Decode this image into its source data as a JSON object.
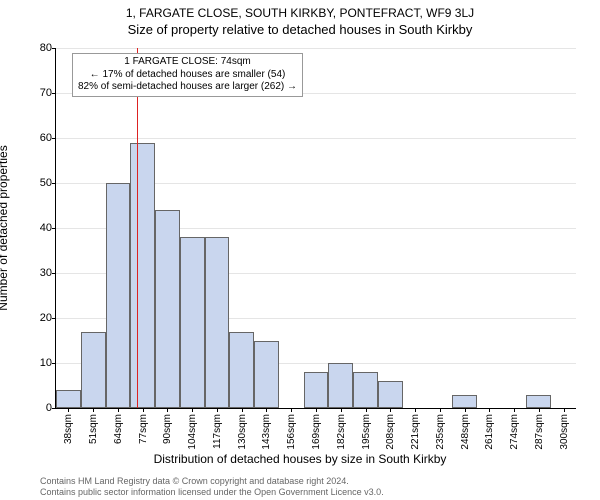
{
  "chart": {
    "type": "histogram",
    "title_line1": "1, FARGATE CLOSE, SOUTH KIRKBY, PONTEFRACT, WF9 3LJ",
    "title_line2": "Size of property relative to detached houses in South Kirkby",
    "ylabel": "Number of detached properties",
    "xlabel": "Distribution of detached houses by size in South Kirkby",
    "background_color": "#ffffff",
    "grid_color": "#e5e5e5",
    "axis_color": "#000000",
    "bar_fill": "#c9d6ee",
    "bar_border": "#666666",
    "reference_line_color": "#d22",
    "reference_value": 74,
    "ylim": [
      0,
      80
    ],
    "ytick_step": 10,
    "xticks": [
      "38sqm",
      "51sqm",
      "64sqm",
      "77sqm",
      "90sqm",
      "104sqm",
      "117sqm",
      "130sqm",
      "143sqm",
      "156sqm",
      "169sqm",
      "182sqm",
      "195sqm",
      "208sqm",
      "221sqm",
      "235sqm",
      "248sqm",
      "261sqm",
      "274sqm",
      "287sqm",
      "300sqm"
    ],
    "values": [
      4,
      17,
      50,
      59,
      44,
      38,
      38,
      17,
      15,
      0,
      8,
      10,
      8,
      6,
      0,
      0,
      3,
      0,
      0,
      3,
      0
    ],
    "title_fontsize": 12,
    "label_fontsize": 12,
    "tick_fontsize": 10,
    "annotation": {
      "line1": "1 FARGATE CLOSE: 74sqm",
      "line2": "← 17% of detached houses are smaller (54)",
      "line3": "82% of semi-detached houses are larger (262) →",
      "box_bg": "#ffffff",
      "box_border": "#999999"
    },
    "footer": {
      "line1": "Contains HM Land Registry data © Crown copyright and database right 2024.",
      "line2": "Contains public sector information licensed under the Open Government Licence v3.0."
    }
  }
}
